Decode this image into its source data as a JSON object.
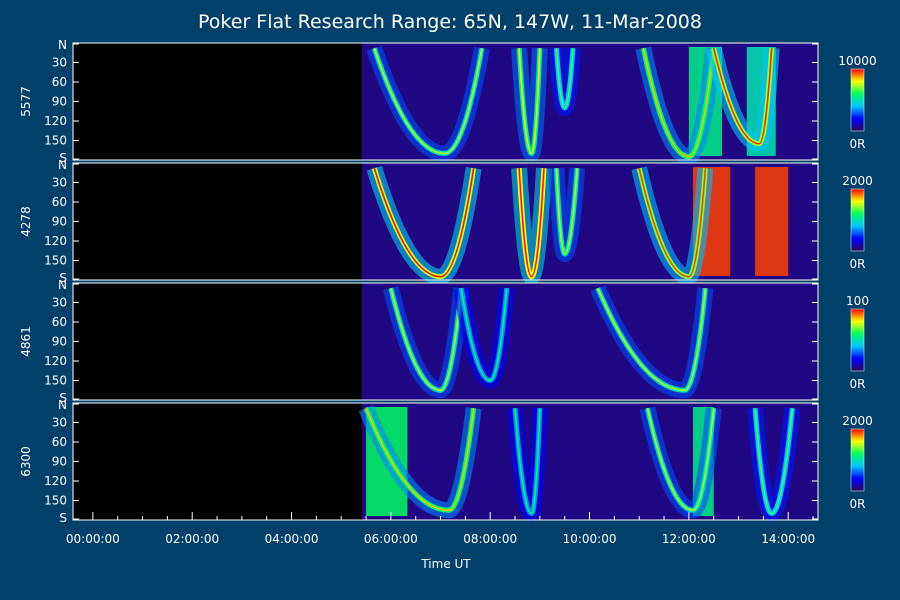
{
  "chart_data": {
    "type": "heatmap",
    "title": "Poker Flat Research Range: 65N, 147W, 11-Mar-2008",
    "xlabel": "Time UT",
    "x_ticks": [
      "00:00:00",
      "02:00:00",
      "04:00:00",
      "06:00:00",
      "08:00:00",
      "10:00:00",
      "12:00:00",
      "14:00:00"
    ],
    "y_ticks": [
      "N",
      "30",
      "60",
      "90",
      "120",
      "150",
      "S"
    ],
    "colorbar_colors": [
      "#2a0a5a",
      "#0000ff",
      "#00c8ff",
      "#00ff60",
      "#ffff00",
      "#ff0000"
    ],
    "background_color": "#00406a",
    "data_start_time": "05:25:00",
    "panels": [
      {
        "label": "5577",
        "scale_max": "10000",
        "scale_min": "0R",
        "arcs": [
          {
            "start": "05:40",
            "min": "07:05",
            "end": "07:50",
            "peak_deg": 170,
            "intensity": 0.5
          },
          {
            "start": "08:35",
            "min": "08:50",
            "end": "09:00",
            "peak_deg": 170,
            "intensity": 0.55
          },
          {
            "start": "09:20",
            "min": "09:30",
            "end": "09:40",
            "peak_deg": 100,
            "intensity": 0.4
          },
          {
            "start": "11:05",
            "min": "12:00",
            "end": "12:30",
            "peak_deg": 175,
            "intensity": 0.6
          },
          {
            "start": "12:30",
            "min": "13:25",
            "end": "13:40",
            "peak_deg": 155,
            "intensity": 0.72
          }
        ],
        "strong_bands": [
          {
            "start": "12:00",
            "end": "12:40",
            "intensity": 0.55
          },
          {
            "start": "13:10",
            "end": "13:45",
            "intensity": 0.5
          }
        ]
      },
      {
        "label": "4278",
        "scale_max": "2000",
        "scale_min": "0R",
        "arcs": [
          {
            "start": "05:40",
            "min": "07:00",
            "end": "07:40",
            "peak_deg": 175,
            "intensity": 0.75
          },
          {
            "start": "08:35",
            "min": "08:50",
            "end": "09:05",
            "peak_deg": 175,
            "intensity": 0.8
          },
          {
            "start": "09:20",
            "min": "09:30",
            "end": "09:45",
            "peak_deg": 140,
            "intensity": 0.5
          },
          {
            "start": "11:00",
            "min": "12:00",
            "end": "12:20",
            "peak_deg": 175,
            "intensity": 0.7
          }
        ],
        "strong_bands": [
          {
            "start": "12:05",
            "end": "12:50",
            "intensity": 0.95
          },
          {
            "start": "13:20",
            "end": "14:00",
            "intensity": 0.95
          }
        ]
      },
      {
        "label": "4861",
        "scale_max": "100",
        "scale_min": "0R",
        "arcs": [
          {
            "start": "06:00",
            "min": "07:00",
            "end": "07:25",
            "peak_deg": 165,
            "intensity": 0.5
          },
          {
            "start": "07:25",
            "min": "08:00",
            "end": "08:20",
            "peak_deg": 150,
            "intensity": 0.35
          },
          {
            "start": "10:10",
            "min": "11:55",
            "end": "12:20",
            "peak_deg": 165,
            "intensity": 0.5
          }
        ],
        "strong_bands": []
      },
      {
        "label": "6300",
        "scale_max": "2000",
        "scale_min": "0R",
        "arcs": [
          {
            "start": "05:30",
            "min": "07:10",
            "end": "07:40",
            "peak_deg": 165,
            "intensity": 0.6
          },
          {
            "start": "08:30",
            "min": "08:50",
            "end": "09:00",
            "peak_deg": 170,
            "intensity": 0.35
          },
          {
            "start": "11:10",
            "min": "12:05",
            "end": "12:30",
            "peak_deg": 165,
            "intensity": 0.5
          },
          {
            "start": "13:20",
            "min": "13:40",
            "end": "14:05",
            "peak_deg": 170,
            "intensity": 0.4
          }
        ],
        "strong_bands": [
          {
            "start": "12:05",
            "end": "12:30",
            "intensity": 0.55
          },
          {
            "start": "05:30",
            "end": "06:20",
            "intensity": 0.6
          }
        ]
      }
    ]
  }
}
